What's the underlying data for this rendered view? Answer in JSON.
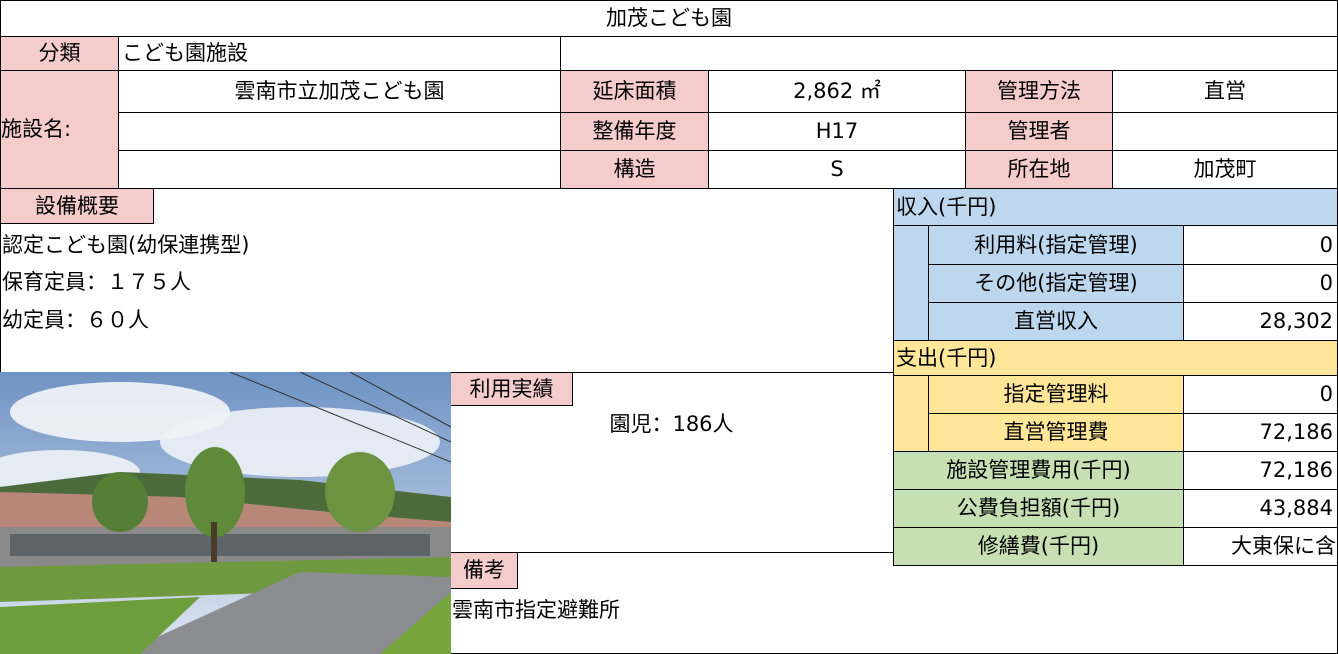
{
  "title": "加茂こども園",
  "classification": {
    "label": "分類",
    "value": "こども園施設"
  },
  "facility_name": {
    "label": "施設名:",
    "value": "雲南市立加茂こども園"
  },
  "details": [
    {
      "label": "延床面積",
      "value": "2,862 ㎡"
    },
    {
      "label": "整備年度",
      "value": "H17"
    },
    {
      "label": "構造",
      "value": "S"
    },
    {
      "label": "管理方法",
      "value": "直営"
    },
    {
      "label": "管理者"
    },
    {
      "label": "所在地",
      "value": "加茂町"
    }
  ],
  "equipment": {
    "label": "設備概要",
    "lines": [
      "認定こども園(幼保連携型)",
      "保育定員：１７５人",
      "幼定員：６０人"
    ]
  },
  "income": {
    "header": "収入(千円)",
    "rows": [
      {
        "label": "利用料(指定管理)",
        "value": "0"
      },
      {
        "label": "その他(指定管理)",
        "value": "0"
      },
      {
        "label": "直営収入",
        "value": "28,302"
      }
    ]
  },
  "expense": {
    "header": "支出(千円)",
    "rows": [
      {
        "label": "指定管理料",
        "value": "0"
      },
      {
        "label": "直営管理費",
        "value": "72,186"
      }
    ]
  },
  "totals": [
    {
      "label": "施設管理費用(千円)",
      "value": "72,186"
    },
    {
      "label": "公費負担額(千円)",
      "value": "43,884"
    },
    {
      "label": "修繕費(千円)",
      "value": "大東保に含"
    }
  ],
  "usage": {
    "label": "利用実績",
    "text": "園児：186人"
  },
  "remarks": {
    "label": "備考",
    "text": "雲南市指定避難所"
  }
}
